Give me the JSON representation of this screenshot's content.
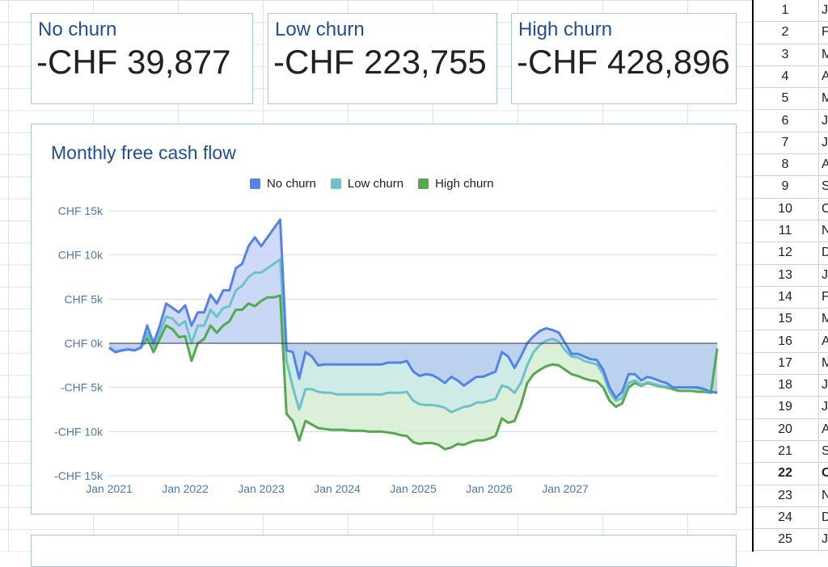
{
  "scorecards": [
    {
      "label": "No churn",
      "value": "-CHF 39,877"
    },
    {
      "label": "Low churn",
      "value": "-CHF 223,755"
    },
    {
      "label": "High churn",
      "value": "-CHF 428,896"
    }
  ],
  "chart_data": {
    "type": "area",
    "title": "Monthly free cash flow",
    "xlabel": "",
    "ylabel": "",
    "x_ticks": [
      "Jan 2021",
      "Jan 2022",
      "Jan 2023",
      "Jan 2024",
      "Jan 2025",
      "Jan 2026",
      "Jan 2027"
    ],
    "y_ticks": [
      "CHF 15k",
      "CHF 10k",
      "CHF 5k",
      "CHF 0k",
      "-CHF 5k",
      "-CHF 10k",
      "-CHF 15k"
    ],
    "ylim": [
      -15000,
      15000
    ],
    "legend_position": "top",
    "grid": true,
    "x_start": "2021-01",
    "series": [
      {
        "name": "No churn",
        "color": "#5383e8",
        "fill": "#c5d3f6",
        "values": [
          -500,
          -1000,
          -800,
          -700,
          -800,
          -500,
          2000,
          0,
          2000,
          4500,
          4000,
          3500,
          4300,
          2000,
          3500,
          3500,
          5500,
          4500,
          6000,
          6000,
          8500,
          9000,
          11000,
          12000,
          11000,
          12000,
          13000,
          14000,
          -800,
          -1000,
          -4000,
          -1000,
          -1500,
          -2500,
          -2400,
          -2400,
          -2400,
          -2400,
          -2400,
          -2400,
          -2400,
          -2400,
          -2400,
          -2400,
          -2200,
          -2200,
          -2200,
          -2000,
          -3200,
          -3700,
          -3500,
          -3600,
          -4000,
          -4500,
          -3800,
          -4200,
          -4800,
          -4300,
          -3800,
          -3800,
          -3500,
          -3200,
          -1000,
          -1500,
          -2800,
          -1500,
          0,
          800,
          1400,
          1700,
          1500,
          1200,
          0,
          -1200,
          -1200,
          -1500,
          -1800,
          -1900,
          -3000,
          -5000,
          -6200,
          -5500,
          -3500,
          -3500,
          -4200,
          -3800,
          -4000,
          -4300,
          -4500,
          -5000,
          -5000,
          -5000,
          -5000,
          -5000,
          -5200,
          -5500,
          -5600
        ]
      },
      {
        "name": "Low churn",
        "color": "#6ec1c9",
        "fill": "#cdeaea",
        "values": [
          -500,
          -1000,
          -800,
          -700,
          -800,
          -500,
          1200,
          -500,
          1200,
          3000,
          2800,
          2000,
          2500,
          0,
          2000,
          2000,
          3800,
          3000,
          4000,
          4200,
          6000,
          6500,
          7500,
          8000,
          8000,
          8500,
          9000,
          9500,
          -2000,
          -5000,
          -7500,
          -5200,
          -5200,
          -5500,
          -5600,
          -5600,
          -5800,
          -5800,
          -5800,
          -5800,
          -5800,
          -5800,
          -5800,
          -5800,
          -5600,
          -5600,
          -5600,
          -5500,
          -6500,
          -6900,
          -7000,
          -7000,
          -7100,
          -7300,
          -7800,
          -7500,
          -7200,
          -7100,
          -6700,
          -6700,
          -6500,
          -6300,
          -4800,
          -5000,
          -5600,
          -4500,
          -2500,
          -1000,
          -200,
          300,
          500,
          200,
          -800,
          -1500,
          -1600,
          -2000,
          -2200,
          -2400,
          -3500,
          -5500,
          -6500,
          -6200,
          -4500,
          -4200,
          -4700,
          -4400,
          -4600,
          -4800,
          -4900,
          -5000,
          -5000,
          -5000,
          -5000,
          -5100,
          -5300,
          -5500,
          -5600
        ]
      },
      {
        "name": "High churn",
        "color": "#54a84e",
        "fill": "#d6ecd2",
        "values": [
          -500,
          -1000,
          -800,
          -700,
          -800,
          -500,
          600,
          -1000,
          500,
          2000,
          1600,
          700,
          800,
          -2000,
          0,
          500,
          2000,
          1200,
          2000,
          2500,
          3800,
          3800,
          4500,
          4200,
          4800,
          5200,
          5200,
          5400,
          -8000,
          -8800,
          -11000,
          -8800,
          -9200,
          -9600,
          -9700,
          -9800,
          -9800,
          -9800,
          -9900,
          -9900,
          -9900,
          -10000,
          -10000,
          -10000,
          -10100,
          -10200,
          -10400,
          -10500,
          -11200,
          -11400,
          -11300,
          -11300,
          -11500,
          -12000,
          -11800,
          -11400,
          -11500,
          -11200,
          -11000,
          -11000,
          -10800,
          -10500,
          -8500,
          -9000,
          -8800,
          -7000,
          -4500,
          -3500,
          -3000,
          -2600,
          -2400,
          -2500,
          -3000,
          -3500,
          -3700,
          -4000,
          -4200,
          -4300,
          -5000,
          -6500,
          -7200,
          -6800,
          -5000,
          -4500,
          -4800,
          -4500,
          -4700,
          -4900,
          -5000,
          -5200,
          -5400,
          -5400,
          -5400,
          -5500,
          -5500,
          -5600,
          -600
        ]
      }
    ]
  },
  "row_panel": {
    "rows": [
      {
        "num": "1",
        "cell": "J"
      },
      {
        "num": "2",
        "cell": "F"
      },
      {
        "num": "3",
        "cell": "M"
      },
      {
        "num": "4",
        "cell": "A"
      },
      {
        "num": "5",
        "cell": "M"
      },
      {
        "num": "6",
        "cell": "J"
      },
      {
        "num": "7",
        "cell": "J"
      },
      {
        "num": "8",
        "cell": "A"
      },
      {
        "num": "9",
        "cell": "S"
      },
      {
        "num": "10",
        "cell": "O"
      },
      {
        "num": "11",
        "cell": "N"
      },
      {
        "num": "12",
        "cell": "D"
      },
      {
        "num": "13",
        "cell": "J"
      },
      {
        "num": "14",
        "cell": "F"
      },
      {
        "num": "15",
        "cell": "M"
      },
      {
        "num": "16",
        "cell": "A"
      },
      {
        "num": "17",
        "cell": "M"
      },
      {
        "num": "18",
        "cell": "J"
      },
      {
        "num": "19",
        "cell": "J"
      },
      {
        "num": "20",
        "cell": "A"
      },
      {
        "num": "21",
        "cell": "S"
      },
      {
        "num": "22",
        "cell": "O",
        "bold": true
      },
      {
        "num": "23",
        "cell": "N"
      },
      {
        "num": "24",
        "cell": "D"
      },
      {
        "num": "25",
        "cell": "J"
      }
    ]
  }
}
